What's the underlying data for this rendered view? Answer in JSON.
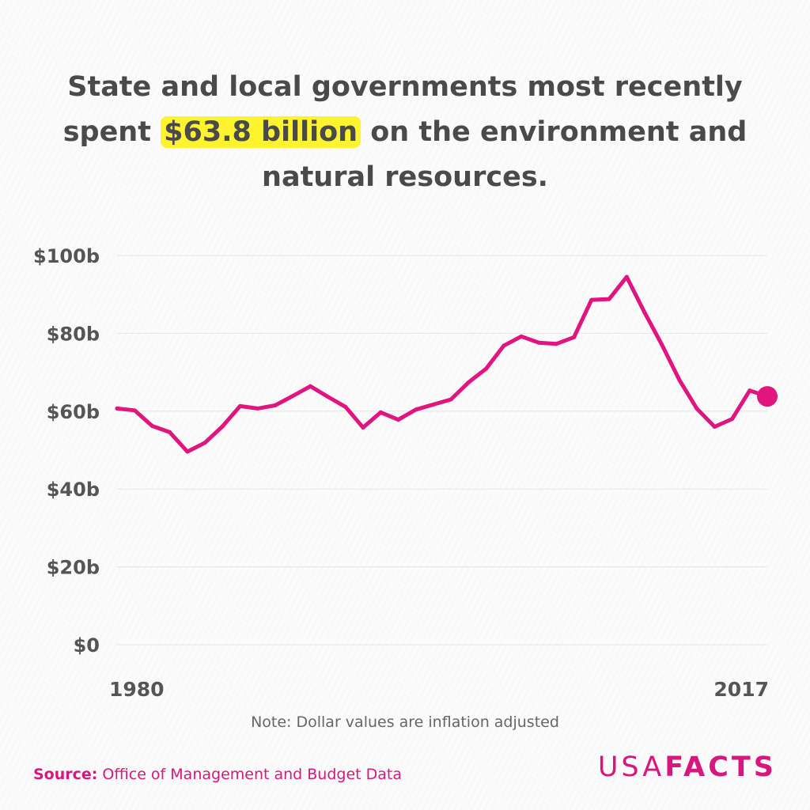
{
  "title": {
    "before": "State and local governments most recently spent ",
    "highlight": "$63.8 billion",
    "after": " on the environment and natural resources."
  },
  "note": "Note: Dollar values are inflation adjusted",
  "source": {
    "label": "Source:",
    "text": " Office of Management and Budget Data"
  },
  "logo": {
    "part1": "USA",
    "part2": "FACTS"
  },
  "colors": {
    "line": "#e0157f",
    "text": "#4a4a4a",
    "highlight": "#fdf32f",
    "brand": "#d8177e"
  },
  "chart_data": {
    "type": "line",
    "x": [
      1980,
      1981,
      1982,
      1983,
      1984,
      1985,
      1986,
      1987,
      1988,
      1989,
      1990,
      1991,
      1992,
      1993,
      1994,
      1995,
      1996,
      1997,
      1998,
      1999,
      2000,
      2001,
      2002,
      2003,
      2004,
      2005,
      2006,
      2007,
      2008,
      2009,
      2010,
      2011,
      2012,
      2013,
      2014,
      2015,
      2016,
      2017
    ],
    "series": [
      {
        "values": [
          60.7,
          60.2,
          56.2,
          54.6,
          49.6,
          51.9,
          56.1,
          61.3,
          60.7,
          61.5,
          63.9,
          66.4,
          63.7,
          61.1,
          55.8,
          59.7,
          57.8,
          60.4,
          61.7,
          63.0,
          67.4,
          70.9,
          76.8,
          79.2,
          77.6,
          77.3,
          79.0,
          88.6,
          88.8,
          94.5,
          85.5,
          77.1,
          68.0,
          60.6,
          56.0,
          58.0,
          65.3,
          63.8
        ]
      }
    ],
    "yticks": [
      "$0",
      "$20b",
      "$40b",
      "$60b",
      "$80b",
      "$100b"
    ],
    "ytick_values": [
      0,
      20,
      40,
      60,
      80,
      100
    ],
    "xticks": [
      "1980",
      "2017"
    ],
    "xtick_values": [
      1980,
      2017
    ],
    "xlim": [
      1980,
      2017
    ],
    "ylim": [
      0,
      100
    ],
    "grid": true,
    "highlight_last_point": true
  }
}
